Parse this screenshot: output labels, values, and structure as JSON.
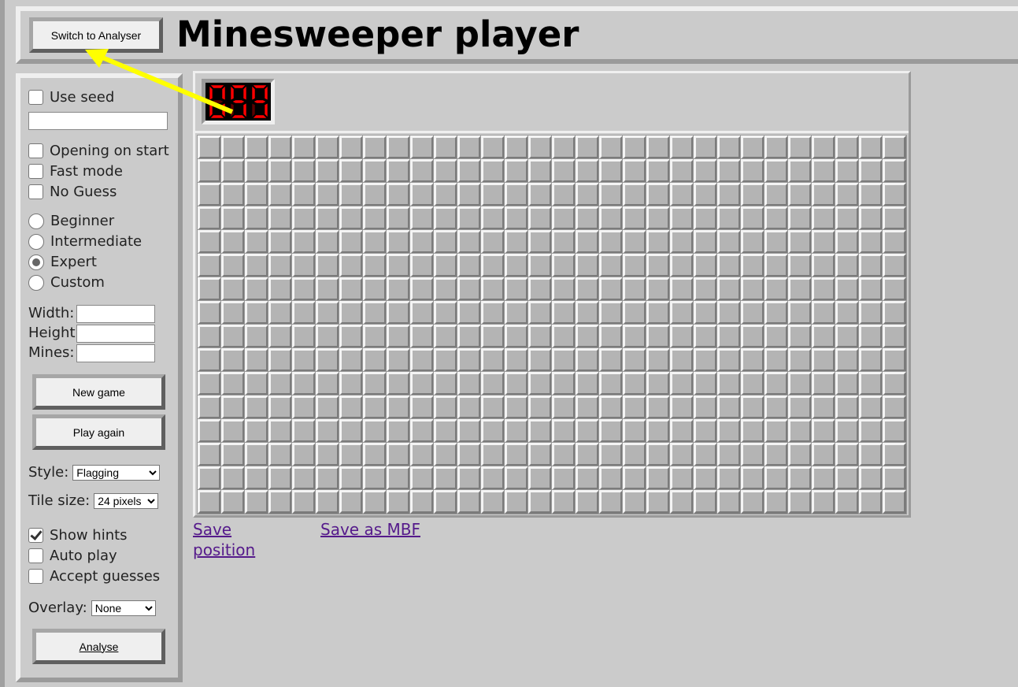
{
  "header": {
    "switch_button": "Switch to Analyser",
    "title": "Minesweeper player"
  },
  "sidebar": {
    "use_seed": {
      "label": "Use seed",
      "checked": false
    },
    "seed_value": "",
    "options": [
      {
        "label": "Opening on start",
        "checked": false
      },
      {
        "label": "Fast mode",
        "checked": false
      },
      {
        "label": "No Guess",
        "checked": false
      }
    ],
    "difficulty": [
      {
        "label": "Beginner",
        "selected": false
      },
      {
        "label": "Intermediate",
        "selected": false
      },
      {
        "label": "Expert",
        "selected": true
      },
      {
        "label": "Custom",
        "selected": false
      }
    ],
    "width_label": "Width:",
    "height_label": "Height:",
    "mines_label": "Mines:",
    "width_value": "",
    "height_value": "",
    "mines_value": "",
    "new_game": "New game",
    "play_again": "Play again",
    "style_label": "Style:",
    "style_value": "Flagging",
    "tile_size_label": "Tile size:",
    "tile_size_value": "24 pixels",
    "hints": [
      {
        "label": "Show hints",
        "checked": true
      },
      {
        "label": "Auto play",
        "checked": false
      },
      {
        "label": "Accept guesses",
        "checked": false
      }
    ],
    "overlay_label": "Overlay:",
    "overlay_value": "None",
    "analyse": "Analyse"
  },
  "game": {
    "mine_counter": "099",
    "columns": 30,
    "rows": 16,
    "counter_color": "#ff0000"
  },
  "links": {
    "save_position": "Save position",
    "save_mbf": "Save as MBF"
  },
  "annotation": {
    "arrow_color": "#ffff00"
  }
}
